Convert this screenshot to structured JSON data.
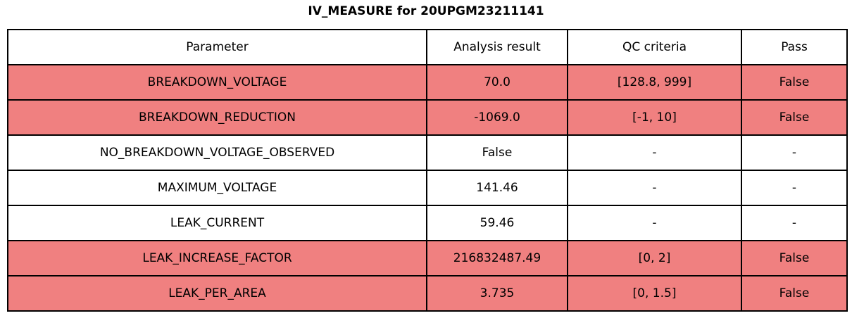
{
  "title": "IV_MEASURE for 20UPGM23211141",
  "colors": {
    "fail_row_bg": "#f08080",
    "normal_row_bg": "#ffffff",
    "border": "#000000",
    "text": "#000000",
    "page_bg": "#ffffff"
  },
  "chart_data": {
    "type": "table",
    "title": "IV_MEASURE for 20UPGM23211141",
    "columns": [
      "Parameter",
      "Analysis result",
      "QC criteria",
      "Pass"
    ],
    "rows": [
      {
        "parameter": "BREAKDOWN_VOLTAGE",
        "analysis_result": "70.0",
        "qc_criteria": "[128.8, 999]",
        "pass": "False",
        "failed": true
      },
      {
        "parameter": "BREAKDOWN_REDUCTION",
        "analysis_result": "-1069.0",
        "qc_criteria": "[-1, 10]",
        "pass": "False",
        "failed": true
      },
      {
        "parameter": "NO_BREAKDOWN_VOLTAGE_OBSERVED",
        "analysis_result": "False",
        "qc_criteria": "-",
        "pass": "-",
        "failed": false
      },
      {
        "parameter": "MAXIMUM_VOLTAGE",
        "analysis_result": "141.46",
        "qc_criteria": "-",
        "pass": "-",
        "failed": false
      },
      {
        "parameter": "LEAK_CURRENT",
        "analysis_result": "59.46",
        "qc_criteria": "-",
        "pass": "-",
        "failed": false
      },
      {
        "parameter": "LEAK_INCREASE_FACTOR",
        "analysis_result": "216832487.49",
        "qc_criteria": "[0, 2]",
        "pass": "False",
        "failed": true
      },
      {
        "parameter": "LEAK_PER_AREA",
        "analysis_result": "3.735",
        "qc_criteria": "[0, 1.5]",
        "pass": "False",
        "failed": true
      }
    ]
  }
}
